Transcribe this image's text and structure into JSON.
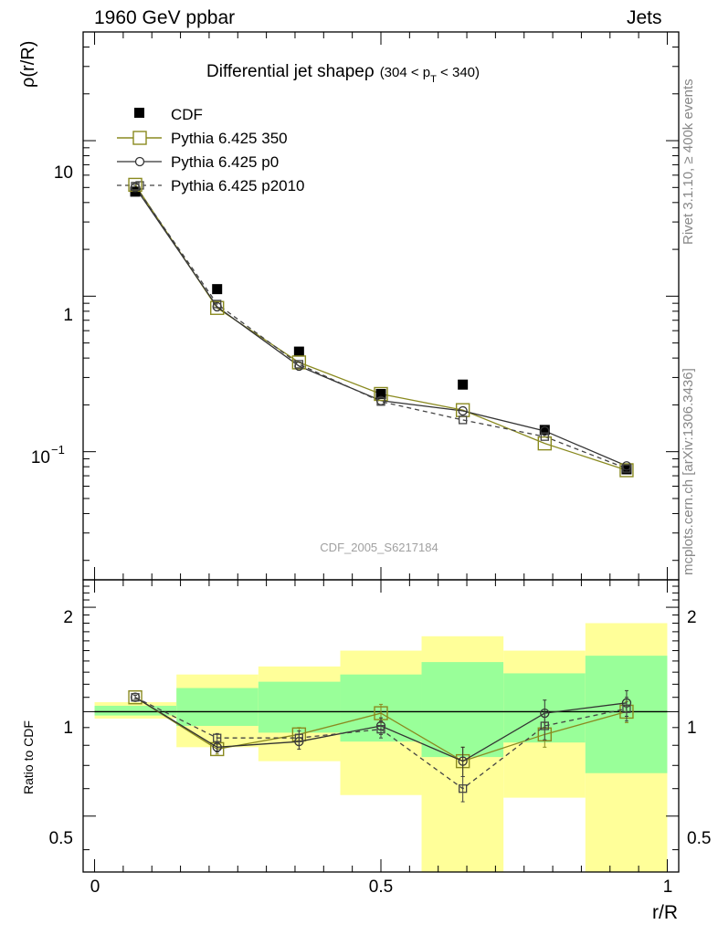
{
  "header": {
    "left": "1960 GeV ppbar",
    "right": "Jets"
  },
  "side_labels": {
    "rivet": "Rivet 3.1.10, ≥ 400k events",
    "mcplots": "mcplots.cern.ch [arXiv:1306.3436]"
  },
  "main_plot": {
    "title_main": "Differential jet shape",
    "title_rho": "ρ",
    "title_range_pre": "(304 < p",
    "title_range_sub": "T",
    "title_range_post": " < 340)",
    "ylabel": "ρ(r/R)",
    "watermark": "CDF_2005_S6217184",
    "ytick_labels": {
      "ten": "10",
      "one": "1",
      "tenth_base": "10",
      "tenth_exp": "−1"
    }
  },
  "ratio_plot": {
    "ylabel": "Ratio to CDF",
    "ytick_labels": [
      "0.5",
      "1",
      "2"
    ]
  },
  "x_axis": {
    "label": "r/R",
    "tick_labels": [
      "0",
      "0.5",
      "1"
    ]
  },
  "legend": [
    "CDF",
    "Pythia 6.425 350",
    "Pythia 6.425 p0",
    "Pythia 6.425 p2010"
  ],
  "colors": {
    "cdf": "#000000",
    "p350": "#8a8a20",
    "p0": "#333333",
    "p2010": "#444444",
    "band_outer": "#ffff99",
    "band_inner": "#99ff99"
  },
  "chart_data": {
    "type": "line",
    "x_axis": {
      "label": "r/R",
      "range": [
        -0.02,
        1.02
      ]
    },
    "main": {
      "y_scale": "log",
      "ylim": [
        0.015,
        50
      ],
      "x": [
        0.071,
        0.214,
        0.357,
        0.5,
        0.643,
        0.786,
        0.929
      ],
      "series": [
        {
          "name": "CDF",
          "values": [
            4.7,
            1.11,
            0.44,
            0.235,
            0.27,
            0.138,
            0.077
          ]
        },
        {
          "name": "Pythia 6.425 350",
          "values": [
            5.2,
            0.84,
            0.375,
            0.235,
            0.185,
            0.113,
            0.076
          ]
        },
        {
          "name": "Pythia 6.425 p0",
          "values": [
            5.0,
            0.855,
            0.355,
            0.213,
            0.183,
            0.136,
            0.081
          ]
        },
        {
          "name": "Pythia 6.425 p2010",
          "values": [
            5.1,
            0.89,
            0.365,
            0.21,
            0.16,
            0.125,
            0.078
          ]
        }
      ]
    },
    "ratio": {
      "y_scale": "log",
      "ylim": [
        0.345,
        2.4
      ],
      "reference": 1,
      "bins": [
        [
          0.0,
          0.143
        ],
        [
          0.143,
          0.286
        ],
        [
          0.286,
          0.429
        ],
        [
          0.429,
          0.571
        ],
        [
          0.571,
          0.714
        ],
        [
          0.714,
          0.857
        ],
        [
          0.857,
          1.0
        ]
      ],
      "band_outer": [
        [
          0.955,
          1.065
        ],
        [
          0.79,
          1.28
        ],
        [
          0.72,
          1.35
        ],
        [
          0.575,
          1.5
        ],
        [
          0.33,
          1.65
        ],
        [
          0.565,
          1.5
        ],
        [
          0.33,
          1.8
        ]
      ],
      "band_inner": [
        [
          0.975,
          1.04
        ],
        [
          0.91,
          1.17
        ],
        [
          0.87,
          1.22
        ],
        [
          0.82,
          1.28
        ],
        [
          0.74,
          1.39
        ],
        [
          0.815,
          1.29
        ],
        [
          0.665,
          1.45
        ]
      ],
      "x": [
        0.071,
        0.214,
        0.357,
        0.5,
        0.643,
        0.786,
        0.929
      ],
      "series": [
        {
          "name": "Pythia 6.425 350",
          "values": [
            1.1,
            0.78,
            0.86,
            0.99,
            0.72,
            0.86,
            1.0
          ],
          "err": [
            0.015,
            0.025,
            0.04,
            0.06,
            0.07,
            0.07,
            0.07
          ]
        },
        {
          "name": "Pythia 6.425 p0",
          "values": [
            1.1,
            0.79,
            0.82,
            0.91,
            0.72,
            0.99,
            1.06
          ],
          "err": [
            0.015,
            0.025,
            0.04,
            0.05,
            0.07,
            0.09,
            0.09
          ]
        },
        {
          "name": "Pythia 6.425 p2010",
          "values": [
            1.1,
            0.84,
            0.84,
            0.89,
            0.6,
            0.91,
            1.02
          ],
          "err": [
            0.015,
            0.025,
            0.04,
            0.05,
            0.05,
            0.08,
            0.08
          ]
        }
      ]
    }
  }
}
